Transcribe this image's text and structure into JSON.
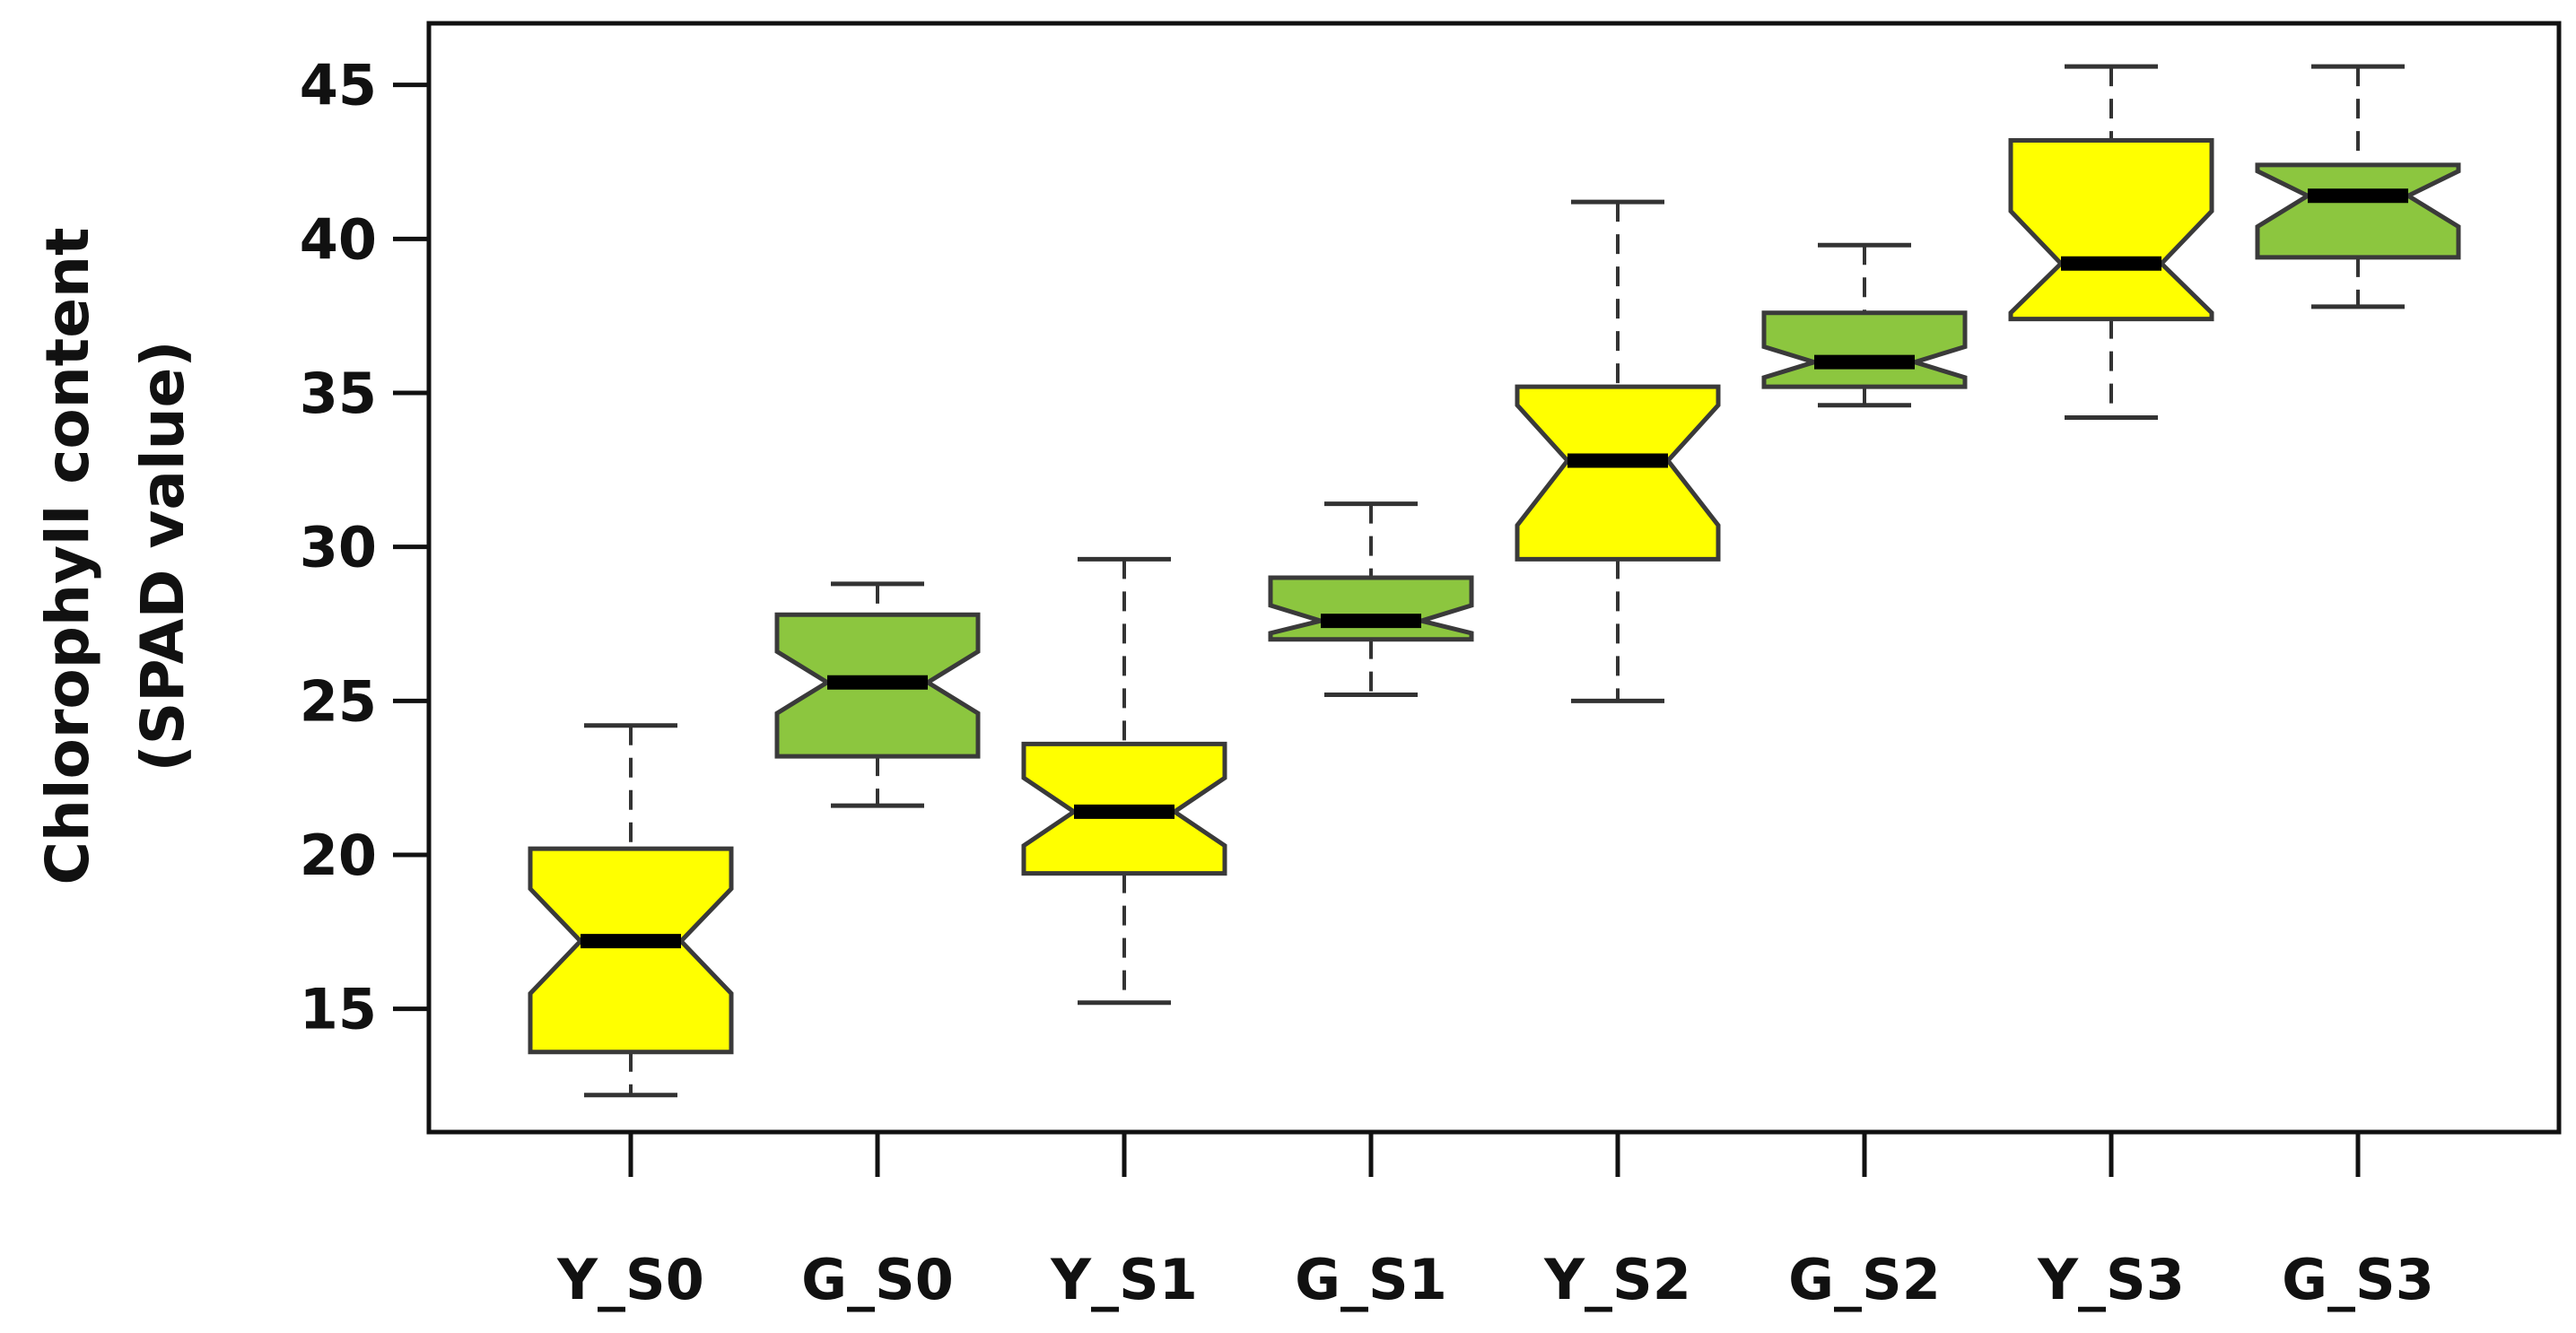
{
  "chart_data": {
    "type": "boxplot",
    "notched": true,
    "title": "",
    "xlabel": "",
    "ylabel_lines": [
      "Chlorophyll content",
      "(SPAD value)"
    ],
    "ylim": [
      11,
      47
    ],
    "yticks": [
      15,
      20,
      25,
      30,
      35,
      40,
      45
    ],
    "grid": false,
    "colors": {
      "Y": "#ffff00",
      "G": "#8cc63f",
      "outline": "#3a3a3a",
      "median": "#000000"
    },
    "boxes": [
      {
        "label": "Y_S0",
        "group": "Y",
        "whisker_low": 12.2,
        "q1": 13.6,
        "median": 17.2,
        "q3": 20.2,
        "whisker_high": 24.2,
        "notch_low": 15.5,
        "notch_high": 18.9
      },
      {
        "label": "G_S0",
        "group": "G",
        "whisker_low": 21.6,
        "q1": 23.2,
        "median": 25.6,
        "q3": 27.8,
        "whisker_high": 28.8,
        "notch_low": 24.6,
        "notch_high": 26.6
      },
      {
        "label": "Y_S1",
        "group": "Y",
        "whisker_low": 15.2,
        "q1": 19.4,
        "median": 21.4,
        "q3": 23.6,
        "whisker_high": 29.6,
        "notch_low": 20.3,
        "notch_high": 22.5
      },
      {
        "label": "G_S1",
        "group": "G",
        "whisker_low": 25.2,
        "q1": 27.0,
        "median": 27.6,
        "q3": 29.0,
        "whisker_high": 31.4,
        "notch_low": 27.2,
        "notch_high": 28.1
      },
      {
        "label": "Y_S2",
        "group": "Y",
        "whisker_low": 25.0,
        "q1": 29.6,
        "median": 32.8,
        "q3": 35.2,
        "whisker_high": 41.2,
        "notch_low": 30.7,
        "notch_high": 34.6
      },
      {
        "label": "G_S2",
        "group": "G",
        "whisker_low": 34.6,
        "q1": 35.2,
        "median": 36.0,
        "q3": 37.6,
        "whisker_high": 39.8,
        "notch_low": 35.5,
        "notch_high": 36.5
      },
      {
        "label": "Y_S3",
        "group": "Y",
        "whisker_low": 34.2,
        "q1": 37.4,
        "median": 39.2,
        "q3": 43.2,
        "whisker_high": 45.6,
        "notch_low": 37.6,
        "notch_high": 40.9
      },
      {
        "label": "G_S3",
        "group": "G",
        "whisker_low": 37.8,
        "q1": 39.4,
        "median": 41.4,
        "q3": 42.4,
        "whisker_high": 45.6,
        "notch_low": 40.4,
        "notch_high": 42.2
      }
    ]
  }
}
